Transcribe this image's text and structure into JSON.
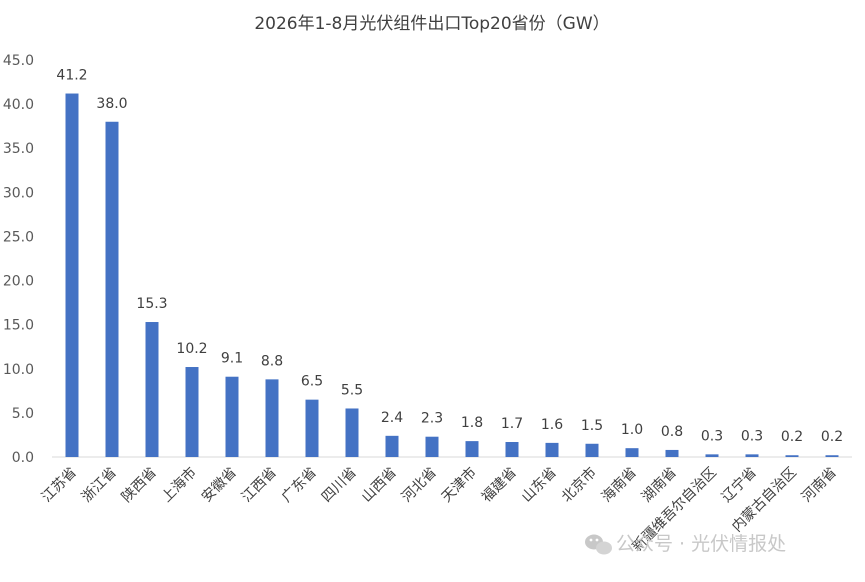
{
  "chart_data": {
    "type": "bar",
    "title": "2026年1-8月光伏组件出口Top20省份（GW）",
    "xlabel": "",
    "ylabel": "",
    "ylim": [
      0,
      45
    ],
    "yticks": [
      "0.0",
      "5.0",
      "10.0",
      "15.0",
      "20.0",
      "25.0",
      "30.0",
      "35.0",
      "40.0",
      "45.0"
    ],
    "grid": false,
    "legend": "none",
    "bar_color": "#4472c4",
    "categories": [
      "江苏省",
      "浙江省",
      "陕西省",
      "上海市",
      "安徽省",
      "江西省",
      "广东省",
      "四川省",
      "山西省",
      "河北省",
      "天津市",
      "福建省",
      "山东省",
      "北京市",
      "海南省",
      "湖南省",
      "新疆维吾尔自治区",
      "辽宁省",
      "内蒙古自治区",
      "河南省"
    ],
    "values": [
      41.2,
      38.0,
      15.3,
      10.2,
      9.1,
      8.8,
      6.5,
      5.5,
      2.4,
      2.3,
      1.8,
      1.7,
      1.6,
      1.5,
      1.0,
      0.8,
      0.3,
      0.3,
      0.2,
      0.2
    ],
    "data_labels": [
      "41.2",
      "38.0",
      "15.3",
      "10.2",
      "9.1",
      "8.8",
      "6.5",
      "5.5",
      "2.4",
      "2.3",
      "1.8",
      "1.7",
      "1.6",
      "1.5",
      "1.0",
      "0.8",
      "0.3",
      "0.3",
      "0.2",
      "0.2"
    ]
  },
  "watermark": {
    "text": "公众号 · 光伏情报处",
    "icon": "wechat-icon"
  }
}
